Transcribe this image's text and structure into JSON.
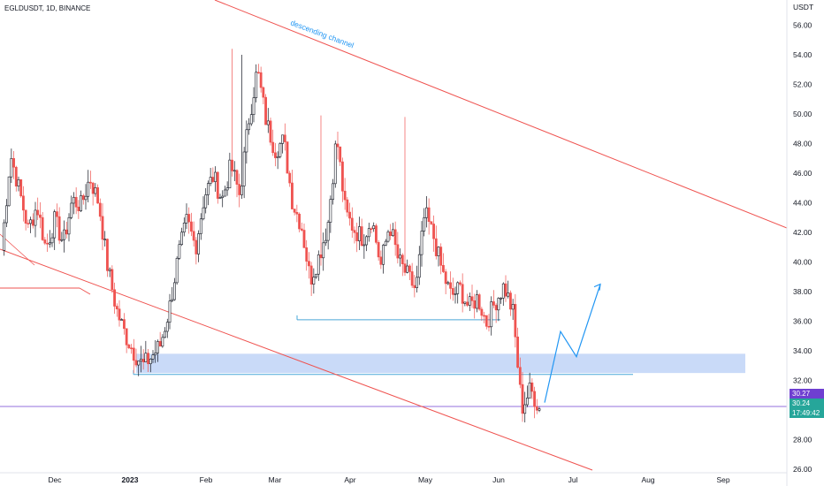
{
  "header": {
    "title": "EGLDUSDT, 1D, BINANCE"
  },
  "y_axis": {
    "unit": "USDT"
  },
  "annotations": {
    "channel_label": "descending channel"
  },
  "price_tags": {
    "last": "30.27",
    "current": "30.24",
    "countdown": "17:49:42"
  },
  "colors": {
    "up": "#ffffff",
    "down": "#ef5350",
    "candle_body_up_edge": "#131722",
    "channel": "#ef5350",
    "zone": "#b7cdf5",
    "support": "#4aa8d8",
    "projection": "#2196f3",
    "tag_last": "#6f3fd1",
    "tag_current": "#26a69a"
  },
  "chart_data": {
    "type": "candlestick",
    "title": "EGLDUSDT, 1D, BINANCE",
    "ylabel": "USDT",
    "ylim": [
      25.5,
      57.5
    ],
    "yticks": [
      26,
      28,
      30,
      32,
      34,
      36,
      38,
      40,
      42,
      44,
      46,
      48,
      50,
      52,
      54,
      56
    ],
    "xticks": [
      "Dec",
      "2023",
      "Feb",
      "Mar",
      "Apr",
      "May",
      "Jun",
      "Jul",
      "Aug",
      "Sep"
    ],
    "last_price": 30.24,
    "support_levels": [
      {
        "price": 36.1,
        "from": "Mar",
        "to": "Jun"
      },
      {
        "price": 32.4,
        "from": "2023",
        "to": "Jul"
      }
    ],
    "demand_zone": {
      "low": 32.5,
      "high": 33.8
    },
    "projection": [
      30.5,
      35.3,
      33.6,
      38.5
    ],
    "keypoints": [
      40.8,
      47.3,
      44.8,
      42.2,
      43.8,
      40.9,
      42.8,
      41.3,
      44.2,
      43.8,
      45.7,
      44.0,
      39.7,
      36.8,
      35.1,
      33.9,
      33.0,
      33.6,
      34.4,
      36.8,
      40.3,
      42.8,
      41.0,
      44.5,
      45.8,
      44.2,
      46.5,
      44.5,
      49.5,
      53.0,
      49.5,
      47.6,
      48.2,
      44.0,
      42.5,
      38.8,
      40.4,
      42.5,
      48.5,
      43.3,
      42.2,
      41.6,
      43.0,
      39.7,
      42.6,
      40.1,
      39.1,
      38.1,
      43.3,
      41.7,
      39.3,
      37.7,
      38.2,
      36.9,
      37.6,
      35.9,
      37.3,
      38.4,
      36.6,
      30.1,
      31.4,
      30.1
    ]
  }
}
